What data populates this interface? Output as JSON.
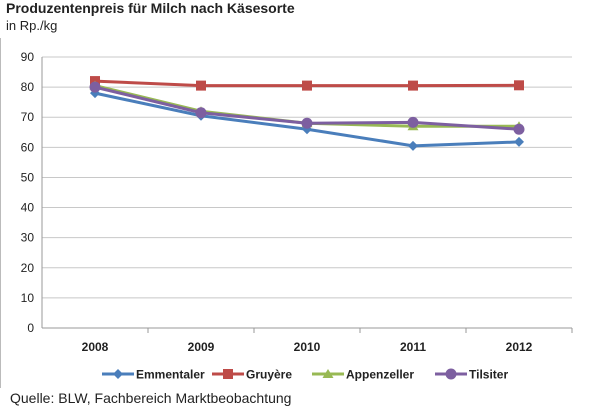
{
  "chart_data": {
    "type": "line",
    "title": "Produzentenpreis für Milch nach Käsesorte",
    "ylabel": "in Rp./kg",
    "xlabel": "",
    "categories": [
      "2008",
      "2009",
      "2010",
      "2011",
      "2012"
    ],
    "ylim": [
      0,
      90
    ],
    "yticks": [
      0,
      10,
      20,
      30,
      40,
      50,
      60,
      70,
      80,
      90
    ],
    "grid": true,
    "legend": "bottom",
    "series": [
      {
        "name": "Emmentaler",
        "color": "#4a7ebb",
        "marker": "diamond",
        "values": [
          78,
          70.5,
          66,
          60.5,
          61.8
        ]
      },
      {
        "name": "Gruyère",
        "color": "#be4b48",
        "marker": "square",
        "values": [
          82,
          80.5,
          80.5,
          80.5,
          80.6
        ]
      },
      {
        "name": "Appenzeller",
        "color": "#98b954",
        "marker": "triangle",
        "values": [
          80.5,
          72,
          68,
          67,
          67
        ]
      },
      {
        "name": "Tilsiter",
        "color": "#7d5fa0",
        "marker": "circle",
        "values": [
          80,
          71.5,
          68,
          68.3,
          66
        ]
      }
    ]
  },
  "source": "Quelle: BLW, Fachbereich Marktbeobachtung"
}
